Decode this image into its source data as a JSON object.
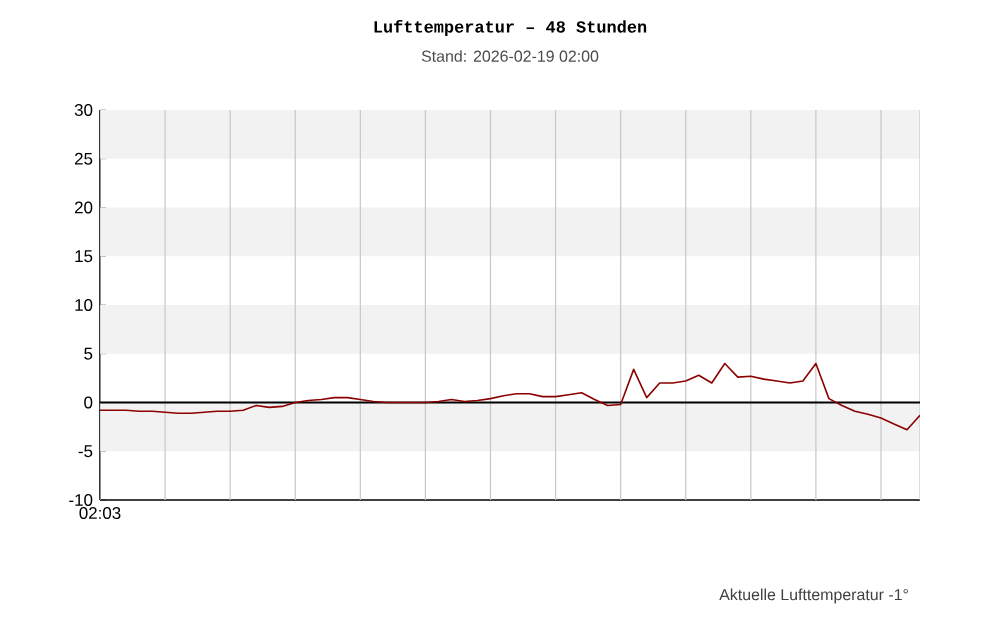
{
  "chart_data": {
    "type": "line",
    "title": "Lufttemperatur – 48 Stunden",
    "subtitle": "Stand: 2026-02-19 02:00",
    "annotations": [
      "Aktuelle Lufttemperatur -1°"
    ],
    "categories": [
      "02:03",
      null,
      null,
      null,
      null,
      null,
      null,
      null,
      null,
      null,
      null,
      null,
      null,
      null,
      null,
      null,
      null,
      null,
      null,
      null,
      null,
      null,
      null,
      null,
      null,
      null,
      null,
      null,
      null,
      null,
      null,
      null,
      null,
      null,
      null,
      null,
      null,
      null,
      null,
      null,
      null,
      null,
      null,
      null,
      null,
      null,
      null,
      null,
      null,
      null,
      null,
      null,
      null,
      null,
      null,
      null,
      null,
      null,
      null,
      null,
      null,
      null,
      null,
      null
    ],
    "series": [
      {
        "color": "#8b0000",
        "values": [
          -0.8,
          -0.8,
          -0.8,
          -0.9,
          -0.9,
          -1.0,
          -1.1,
          -1.1,
          -1.0,
          -0.9,
          -0.9,
          -0.8,
          -0.3,
          -0.5,
          -0.4,
          0,
          0.2,
          0.3,
          0.5,
          0.5,
          0.3,
          0.1,
          0,
          0,
          0,
          0,
          0.1,
          0.3,
          0.1,
          0.2,
          0.4,
          0.7,
          0.9,
          0.9,
          0.6,
          0.6,
          0.8,
          1.0,
          0.3,
          -0.3,
          -0.2,
          3.4,
          0.5,
          2.0,
          2.0,
          2.2,
          2.8,
          2.0,
          4.0,
          2.6,
          2.7,
          2.4,
          2.2,
          2.0,
          2.2,
          4.0,
          0.4,
          -0.3,
          -0.9,
          -1.2,
          -1.6,
          -2.2,
          -2.8,
          -1.3
        ]
      }
    ],
    "ylim": [
      -10,
      30
    ],
    "yticks": [
      {
        "value": -10,
        "label": "-10"
      },
      {
        "value": -5,
        "label": "-5"
      },
      {
        "value": 0,
        "label": "0"
      },
      {
        "value": 5,
        "label": "5"
      },
      {
        "value": 10,
        "label": "10"
      },
      {
        "value": 15,
        "label": "15"
      },
      {
        "value": 20,
        "label": "20"
      },
      {
        "value": 25,
        "label": "25"
      },
      {
        "value": 30,
        "label": "30"
      }
    ],
    "grid": "x",
    "ref_lines": [
      {
        "axis": "y",
        "value": 0,
        "color": "#000000"
      }
    ],
    "bands": [
      {
        "axis": "y",
        "from": -5,
        "to": 0,
        "color": "#f2f2f2"
      },
      {
        "axis": "y",
        "from": 5,
        "to": 10,
        "color": "#f2f2f2"
      },
      {
        "axis": "y",
        "from": 15,
        "to": 20,
        "color": "#f2f2f2"
      },
      {
        "axis": "y",
        "from": 25,
        "to": 30,
        "color": "#f2f2f2"
      }
    ]
  }
}
